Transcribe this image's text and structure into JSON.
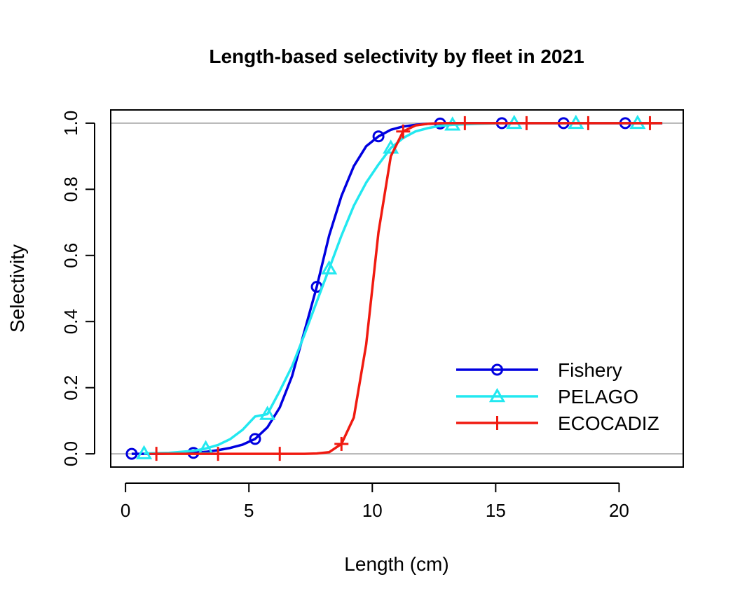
{
  "chart_data": {
    "type": "line",
    "title": "Length-based selectivity by fleet in 2021",
    "xlabel": "Length (cm)",
    "ylabel": "Selectivity",
    "xlim": [
      -0.6,
      22.6
    ],
    "ylim": [
      -0.04,
      1.04
    ],
    "x_ticks": [
      0,
      5,
      10,
      15,
      20
    ],
    "y_ticks": [
      0.0,
      0.2,
      0.4,
      0.6,
      0.8,
      1.0
    ],
    "x_tick_labels": [
      "0",
      "5",
      "10",
      "15",
      "20"
    ],
    "y_tick_labels": [
      "0.0",
      "0.2",
      "0.4",
      "0.6",
      "0.8",
      "1.0"
    ],
    "reference_lines_y": [
      0,
      1
    ],
    "legend_position": "bottom-right",
    "series": [
      {
        "name": "Fishery",
        "color": "#0000e0",
        "marker": "circle",
        "x": [
          0.25,
          1.25,
          2.25,
          2.75,
          3.25,
          3.75,
          4.25,
          4.75,
          5.25,
          5.75,
          6.25,
          6.75,
          7.25,
          7.75,
          8.25,
          8.75,
          9.25,
          9.75,
          10.25,
          10.75,
          11.25,
          11.75,
          12.25,
          12.75,
          13.25,
          14.25,
          15.25,
          16.25,
          17.25,
          17.75,
          18.75,
          19.75,
          20.25,
          21.25,
          21.75
        ],
        "y": [
          0.0,
          0.0,
          0.0015,
          0.003,
          0.006,
          0.011,
          0.018,
          0.028,
          0.045,
          0.08,
          0.14,
          0.235,
          0.37,
          0.505,
          0.66,
          0.78,
          0.87,
          0.93,
          0.96,
          0.98,
          0.99,
          0.995,
          0.998,
          0.999,
          1.0,
          1.0,
          1.0,
          1.0,
          1.0,
          1.0,
          1.0,
          1.0,
          1.0,
          1.0,
          1.0
        ],
        "marker_x": [
          0.25,
          2.75,
          5.25,
          7.75,
          10.25,
          12.75,
          15.25,
          17.75,
          20.25
        ],
        "marker_y": [
          0.0,
          0.003,
          0.045,
          0.505,
          0.96,
          0.999,
          1.0,
          1.0,
          1.0
        ]
      },
      {
        "name": "PELAGO",
        "color": "#22e8f0",
        "marker": "triangle",
        "x": [
          0.75,
          1.75,
          2.75,
          3.25,
          3.75,
          4.25,
          4.75,
          5.25,
          5.75,
          6.25,
          6.75,
          7.25,
          7.75,
          8.25,
          8.75,
          9.25,
          9.75,
          10.25,
          10.75,
          11.25,
          11.75,
          12.25,
          12.75,
          13.25,
          14.25,
          15.25,
          15.75,
          16.75,
          17.75,
          18.25,
          19.25,
          20.25,
          20.75,
          21.75
        ],
        "y": [
          0.001,
          0.003,
          0.009,
          0.016,
          0.027,
          0.045,
          0.073,
          0.113,
          0.12,
          0.19,
          0.265,
          0.36,
          0.46,
          0.56,
          0.66,
          0.75,
          0.82,
          0.875,
          0.925,
          0.955,
          0.975,
          0.985,
          0.992,
          0.995,
          0.998,
          1.0,
          1.0,
          1.0,
          1.0,
          1.0,
          1.0,
          1.0,
          1.0,
          1.0
        ],
        "marker_x": [
          0.75,
          3.25,
          5.75,
          8.25,
          10.75,
          13.25,
          15.75,
          18.25,
          20.75
        ],
        "marker_y": [
          0.001,
          0.016,
          0.12,
          0.56,
          0.925,
          0.995,
          1.0,
          1.0,
          1.0
        ]
      },
      {
        "name": "ECOCADIZ",
        "color": "#f01a10",
        "marker": "plus",
        "x": [
          1.25,
          2.25,
          3.25,
          3.75,
          4.75,
          5.75,
          6.25,
          7.25,
          7.75,
          8.25,
          8.75,
          9.25,
          9.75,
          10.25,
          10.75,
          11.25,
          11.75,
          12.25,
          12.75,
          13.25,
          13.75,
          14.75,
          15.75,
          16.25,
          17.25,
          18.25,
          18.75,
          19.75,
          20.75,
          21.25,
          21.75
        ],
        "y": [
          0.0,
          0.0,
          0.0,
          0.0,
          0.0,
          0.0,
          0.0,
          0.0,
          0.001,
          0.005,
          0.03,
          0.11,
          0.33,
          0.67,
          0.9,
          0.975,
          0.993,
          0.998,
          1.0,
          1.0,
          1.0,
          1.0,
          1.0,
          1.0,
          1.0,
          1.0,
          1.0,
          1.0,
          1.0,
          1.0,
          1.0
        ],
        "marker_x": [
          1.25,
          3.75,
          6.25,
          8.75,
          11.25,
          13.75,
          16.25,
          18.75,
          21.25
        ],
        "marker_y": [
          0.0,
          0.0,
          0.0,
          0.03,
          0.975,
          1.0,
          1.0,
          1.0,
          1.0
        ]
      }
    ]
  }
}
